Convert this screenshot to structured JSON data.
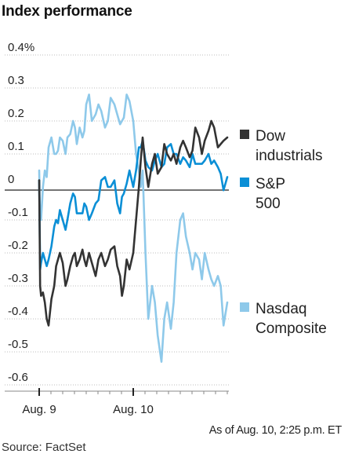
{
  "title": "Index performance",
  "note": "As of Aug. 10, 2:25 p.m. ET",
  "source": "Source: FactSet",
  "legend": [
    {
      "label": "Dow\nindustrials",
      "color": "#333333"
    },
    {
      "label": "S&P\n500",
      "color": "#0b8fd6"
    },
    {
      "label": "Nasdaq\nComposite",
      "color": "#8ec9ea"
    }
  ],
  "chart_data": {
    "type": "line",
    "title": "Index performance",
    "xlabel": "",
    "ylabel": "",
    "ylim": [
      -0.6,
      0.4
    ],
    "xlim": [
      0,
      2
    ],
    "grid": "horizontal dotted",
    "legend_position": "right",
    "y_ticks": [
      {
        "value": 0.4,
        "label": "0.4%"
      },
      {
        "value": 0.3,
        "label": "0.3"
      },
      {
        "value": 0.2,
        "label": "0.2"
      },
      {
        "value": 0.1,
        "label": "0.1"
      },
      {
        "value": 0,
        "label": "0"
      },
      {
        "value": -0.1,
        "label": "-0.1"
      },
      {
        "value": -0.2,
        "label": "-0.2"
      },
      {
        "value": -0.3,
        "label": "-0.3"
      },
      {
        "value": -0.4,
        "label": "-0.4"
      },
      {
        "value": -0.5,
        "label": "-0.5"
      },
      {
        "value": -0.6,
        "label": "-0.6"
      }
    ],
    "x_ticks": [
      {
        "value": 0,
        "label": "Aug. 9"
      },
      {
        "value": 1,
        "label": "Aug. 10"
      }
    ],
    "series": [
      {
        "name": "Dow industrials",
        "color": "#333333",
        "x": [
          0,
          0.01,
          0.02,
          0.04,
          0.06,
          0.08,
          0.1,
          0.13,
          0.16,
          0.18,
          0.2,
          0.22,
          0.25,
          0.28,
          0.3,
          0.33,
          0.36,
          0.38,
          0.4,
          0.43,
          0.46,
          0.48,
          0.5,
          0.53,
          0.56,
          0.6,
          0.63,
          0.66,
          0.7,
          0.73,
          0.76,
          0.8,
          0.83,
          0.86,
          0.88,
          0.9,
          0.93,
          0.96,
          1.0,
          1.03,
          1.06,
          1.08,
          1.1,
          1.13,
          1.16,
          1.2,
          1.23,
          1.26,
          1.3,
          1.33,
          1.36,
          1.4,
          1.43,
          1.46,
          1.5,
          1.53,
          1.56,
          1.6,
          1.63,
          1.66,
          1.7,
          1.73,
          1.76,
          1.8,
          1.83,
          1.86,
          1.9,
          1.93,
          1.96,
          2.0
        ],
        "values": [
          0.02,
          -0.3,
          -0.33,
          -0.32,
          -0.35,
          -0.4,
          -0.42,
          -0.34,
          -0.3,
          -0.24,
          -0.22,
          -0.2,
          -0.23,
          -0.3,
          -0.28,
          -0.24,
          -0.21,
          -0.2,
          -0.24,
          -0.22,
          -0.19,
          -0.22,
          -0.24,
          -0.2,
          -0.23,
          -0.27,
          -0.22,
          -0.2,
          -0.24,
          -0.22,
          -0.19,
          -0.18,
          -0.24,
          -0.27,
          -0.33,
          -0.3,
          -0.22,
          -0.25,
          -0.2,
          -0.1,
          0.0,
          0.08,
          0.15,
          0.06,
          0.0,
          0.07,
          0.1,
          0.04,
          0.06,
          0.13,
          0.1,
          0.08,
          0.1,
          0.07,
          0.12,
          0.14,
          0.12,
          0.09,
          0.11,
          0.18,
          0.15,
          0.1,
          0.14,
          0.17,
          0.2,
          0.18,
          0.12,
          0.13,
          0.14,
          0.15
        ]
      },
      {
        "name": "S&P 500",
        "color": "#0b8fd6",
        "x": [
          0,
          0.01,
          0.02,
          0.04,
          0.06,
          0.08,
          0.1,
          0.13,
          0.16,
          0.18,
          0.2,
          0.22,
          0.25,
          0.28,
          0.3,
          0.33,
          0.36,
          0.38,
          0.4,
          0.43,
          0.46,
          0.48,
          0.5,
          0.53,
          0.56,
          0.6,
          0.63,
          0.66,
          0.7,
          0.73,
          0.76,
          0.8,
          0.83,
          0.86,
          0.88,
          0.9,
          0.93,
          0.96,
          1.0,
          1.03,
          1.06,
          1.08,
          1.1,
          1.13,
          1.16,
          1.2,
          1.23,
          1.26,
          1.3,
          1.33,
          1.36,
          1.4,
          1.43,
          1.46,
          1.5,
          1.53,
          1.56,
          1.6,
          1.63,
          1.66,
          1.7,
          1.73,
          1.76,
          1.8,
          1.83,
          1.86,
          1.9,
          1.93,
          1.96,
          2.0
        ],
        "values": [
          0.02,
          -0.25,
          -0.23,
          -0.2,
          -0.22,
          -0.24,
          -0.22,
          -0.18,
          -0.12,
          -0.1,
          -0.11,
          -0.07,
          -0.1,
          -0.13,
          -0.1,
          -0.05,
          -0.02,
          -0.03,
          -0.08,
          -0.08,
          -0.08,
          -0.05,
          -0.06,
          -0.1,
          -0.08,
          -0.05,
          -0.04,
          0.02,
          0.03,
          0.0,
          0.0,
          0.02,
          -0.05,
          -0.08,
          -0.03,
          -0.02,
          0.01,
          0.05,
          0.0,
          0.05,
          0.12,
          0.12,
          0.14,
          0.08,
          0.06,
          0.05,
          0.08,
          0.1,
          0.06,
          0.07,
          0.12,
          0.13,
          0.1,
          0.1,
          0.07,
          0.09,
          0.08,
          0.06,
          0.1,
          0.07,
          0.07,
          0.07,
          0.08,
          0.1,
          0.07,
          0.08,
          0.06,
          0.04,
          -0.01,
          0.03
        ]
      },
      {
        "name": "Nasdaq Composite",
        "color": "#8ec9ea",
        "x": [
          0,
          0.01,
          0.02,
          0.04,
          0.06,
          0.08,
          0.1,
          0.13,
          0.16,
          0.18,
          0.2,
          0.22,
          0.25,
          0.28,
          0.3,
          0.33,
          0.36,
          0.38,
          0.4,
          0.43,
          0.46,
          0.48,
          0.5,
          0.53,
          0.56,
          0.6,
          0.63,
          0.66,
          0.7,
          0.73,
          0.76,
          0.8,
          0.83,
          0.86,
          0.88,
          0.9,
          0.93,
          0.96,
          1.0,
          1.03,
          1.06,
          1.08,
          1.1,
          1.13,
          1.16,
          1.2,
          1.23,
          1.26,
          1.3,
          1.33,
          1.36,
          1.4,
          1.43,
          1.46,
          1.5,
          1.53,
          1.56,
          1.6,
          1.63,
          1.66,
          1.7,
          1.73,
          1.76,
          1.8,
          1.83,
          1.86,
          1.9,
          1.93,
          1.96,
          2.0
        ],
        "values": [
          0.05,
          -0.1,
          -0.1,
          0.0,
          0.05,
          0.03,
          0.12,
          0.15,
          0.1,
          0.1,
          0.11,
          0.15,
          0.14,
          0.1,
          0.15,
          0.16,
          0.2,
          0.18,
          0.13,
          0.18,
          0.15,
          0.17,
          0.25,
          0.28,
          0.2,
          0.22,
          0.25,
          0.23,
          0.18,
          0.2,
          0.27,
          0.25,
          0.22,
          0.19,
          0.2,
          0.21,
          0.28,
          0.26,
          0.2,
          0.1,
          0.05,
          0.0,
          0.05,
          -0.2,
          -0.4,
          -0.3,
          -0.35,
          -0.45,
          -0.53,
          -0.4,
          -0.35,
          -0.43,
          -0.35,
          -0.2,
          -0.1,
          -0.08,
          -0.15,
          -0.2,
          -0.25,
          -0.2,
          -0.22,
          -0.28,
          -0.2,
          -0.25,
          -0.28,
          -0.3,
          -0.27,
          -0.3,
          -0.42,
          -0.35
        ]
      }
    ]
  }
}
